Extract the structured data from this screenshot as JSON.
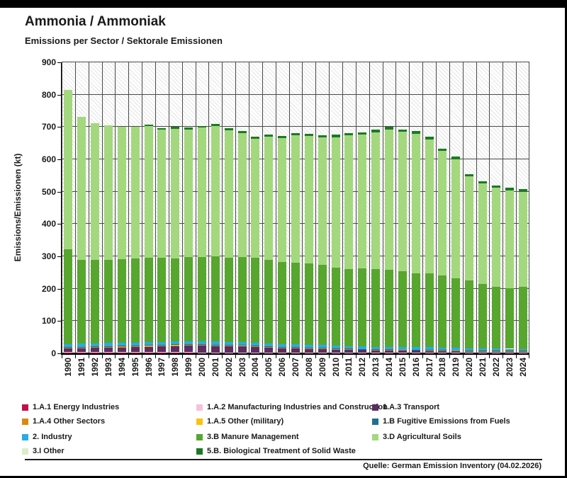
{
  "header": {
    "title": "Ammonia / Ammoniak",
    "subtitle": "Emissions per Sector / Sektorale Emissionen"
  },
  "footer": {
    "source": "Quelle: German Emission Inventory (04.02.2026)"
  },
  "chart_data": {
    "type": "bar",
    "stacked": true,
    "title": "Ammonia / Ammoniak",
    "subtitle": "Emissions per Sector / Sektorale Emissionen",
    "xlabel": "",
    "ylabel": "Emissions/Emissionen (kt)",
    "ylim": [
      0,
      900
    ],
    "ytick_interval": 100,
    "grid": true,
    "background_hatch": true,
    "legend_position": "bottom",
    "years": [
      1990,
      1991,
      1992,
      1993,
      1994,
      1995,
      1996,
      1997,
      1998,
      1999,
      2000,
      2001,
      2002,
      2003,
      2004,
      2005,
      2006,
      2007,
      2008,
      2009,
      2010,
      2011,
      2012,
      2013,
      2014,
      2015,
      2016,
      2017,
      2018,
      2019,
      2020,
      2021,
      2022,
      2023,
      2024
    ],
    "series": [
      {
        "name": "1.A.1 Energy Industries",
        "color": "#c01048",
        "values": [
          2.5,
          2.5,
          2.5,
          2.5,
          2.5,
          2.5,
          2.5,
          2.5,
          2.5,
          2.5,
          2,
          2,
          2,
          2,
          2,
          2,
          2,
          2,
          2,
          2,
          2,
          2,
          2,
          2,
          2,
          2,
          2,
          2,
          2,
          2,
          1.5,
          1.5,
          1.5,
          1.5,
          1.5
        ]
      },
      {
        "name": "1.A.2 Manufacturing Industries and Construction",
        "color": "#f4c3da",
        "values": [
          1,
          1,
          1,
          1,
          1,
          1,
          1,
          1,
          1,
          1,
          1,
          1,
          1,
          1,
          1,
          1,
          1,
          1,
          1,
          1,
          1,
          1,
          1,
          1,
          1,
          1,
          1,
          1,
          1,
          1,
          1,
          1,
          1,
          1,
          1
        ]
      },
      {
        "name": "1.A.3 Transport",
        "color": "#5c2d61",
        "values": [
          11,
          12,
          13,
          14,
          15,
          16,
          17,
          18,
          19,
          20,
          21,
          20,
          19,
          18,
          17,
          15,
          13,
          12,
          11,
          10,
          9,
          8,
          7,
          6.5,
          6,
          5.5,
          5,
          4.5,
          4,
          3.5,
          3,
          2.8,
          2.6,
          2.5,
          2.4
        ]
      },
      {
        "name": "1.A.4 Other Sectors",
        "color": "#d98b0f",
        "values": [
          3.5,
          3.5,
          3.5,
          3.5,
          3.5,
          3.5,
          3.5,
          3.5,
          3.5,
          3.5,
          3,
          3,
          3,
          3,
          3,
          3,
          3,
          3,
          3,
          3,
          2.5,
          2.5,
          2.5,
          2.5,
          2.5,
          2.5,
          2.5,
          2.5,
          2.5,
          2.5,
          2,
          2,
          2,
          2,
          2
        ]
      },
      {
        "name": "1.A.5 Other (military)",
        "color": "#fec10d",
        "values": [
          0.3,
          0.3,
          0.3,
          0.3,
          0.3,
          0.3,
          0.3,
          0.3,
          0.3,
          0.3,
          0.3,
          0.3,
          0.3,
          0.3,
          0.3,
          0.3,
          0.3,
          0.3,
          0.3,
          0.3,
          0.3,
          0.3,
          0.3,
          0.3,
          0.3,
          0.3,
          0.3,
          0.3,
          0.3,
          0.3,
          0.3,
          0.3,
          0.3,
          0.3,
          0.3
        ]
      },
      {
        "name": "1.B Fugitive Emissions from Fuels",
        "color": "#20708f",
        "values": [
          1.5,
          1.5,
          1.5,
          1.5,
          1.5,
          1.5,
          1.5,
          1.5,
          1.5,
          1.5,
          1,
          1,
          1,
          1,
          1,
          1,
          1,
          1,
          1,
          1,
          0.5,
          0.5,
          0.5,
          0.5,
          0.5,
          0.5,
          0.5,
          0.5,
          0.5,
          0.5,
          0.5,
          0.5,
          0.5,
          0.5,
          0.5
        ]
      },
      {
        "name": "2. Industry",
        "color": "#2aabe2",
        "values": [
          9,
          9,
          9,
          9,
          9,
          9,
          9,
          9,
          9,
          9,
          9,
          9,
          9,
          9,
          9,
          9,
          9,
          9,
          9,
          9,
          8,
          8,
          8,
          8,
          8,
          8,
          8,
          8,
          7,
          7,
          6.5,
          6.5,
          6.5,
          6.5,
          6.5
        ]
      },
      {
        "name": "3.B Manure Management",
        "color": "#57a62e",
        "values": [
          293.2,
          259.2,
          257.2,
          258.2,
          259.2,
          259.2,
          260.2,
          259.2,
          256.2,
          259.2,
          260.7,
          263.7,
          259.7,
          263.7,
          261.7,
          258.7,
          252.7,
          252.7,
          250.7,
          246.7,
          242.7,
          237.7,
          240.7,
          239.2,
          238.7,
          233.2,
          228.7,
          229.2,
          223.7,
          216.2,
          211.2,
          200.4,
          191.6,
          187.7,
          191.8
        ]
      },
      {
        "name": "3.D Agricultural Soils",
        "color": "#a4d87e",
        "values": [
          493,
          442,
          424,
          415,
          408,
          407,
          409,
          396,
          402,
          396,
          401,
          404,
          395,
          384,
          369,
          380,
          383,
          394,
          394,
          394,
          403,
          414,
          414,
          424,
          433,
          432,
          431,
          414,
          385,
          368,
          321,
          310,
          306,
          302,
          294
        ]
      },
      {
        "name": "3.I Other",
        "color": "#dcedc8",
        "values": [
          0,
          0,
          0,
          0,
          0,
          0,
          0,
          0,
          0,
          0,
          0,
          0,
          0,
          0,
          0,
          0,
          0,
          0,
          0,
          0,
          0,
          0,
          0,
          0,
          0,
          0,
          0,
          0,
          0,
          0,
          0,
          0,
          0,
          0,
          0
        ]
      },
      {
        "name": "5.B. Biological Treatment of Solid Waste",
        "color": "#1b7a24",
        "values": [
          0,
          0,
          0,
          0,
          0,
          0,
          4,
          5,
          5,
          5,
          5,
          6,
          6,
          6,
          6,
          6,
          7,
          7,
          7,
          7,
          7,
          8,
          8,
          8,
          8,
          8,
          8,
          8,
          8,
          8,
          8,
          8,
          8,
          8,
          8
        ]
      }
    ]
  }
}
